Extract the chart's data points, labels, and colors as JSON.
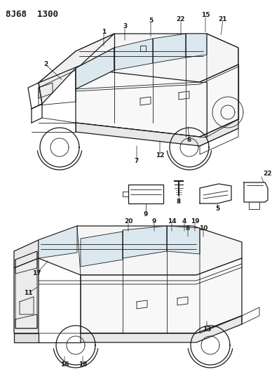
{
  "title_line1": "8J68",
  "title_line2": "1300",
  "bg": "#ffffff",
  "lc": "#1a1a1a",
  "figsize": [
    3.98,
    5.33
  ],
  "dpi": 100
}
